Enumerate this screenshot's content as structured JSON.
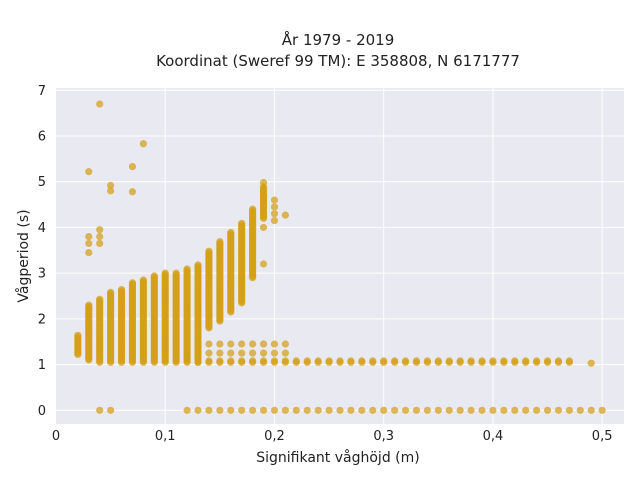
{
  "chart_data": {
    "type": "scatter",
    "title_line1": "År 1979 - 2019",
    "title_line2": "Koordinat (Sweref 99 TM): E 358808, N 6171777",
    "xlabel": "Signifikant våghöjd (m)",
    "ylabel": "Vågperiod (s)",
    "xlim": [
      0,
      0.52
    ],
    "ylim": [
      -0.3,
      7.05
    ],
    "x_ticks": [
      {
        "value": 0,
        "label": "0"
      },
      {
        "value": 0.1,
        "label": "0,1"
      },
      {
        "value": 0.2,
        "label": "0,2"
      },
      {
        "value": 0.3,
        "label": "0,3"
      },
      {
        "value": 0.4,
        "label": "0,4"
      },
      {
        "value": 0.5,
        "label": "0,5"
      }
    ],
    "y_ticks": [
      {
        "value": 0,
        "label": "0"
      },
      {
        "value": 1,
        "label": "1"
      },
      {
        "value": 2,
        "label": "2"
      },
      {
        "value": 3,
        "label": "3"
      },
      {
        "value": 4,
        "label": "4"
      },
      {
        "value": 5,
        "label": "5"
      },
      {
        "value": 6,
        "label": "6"
      },
      {
        "value": 7,
        "label": "7"
      }
    ],
    "grid": true,
    "marker_color": "#d4a017",
    "plot_background": "#e9e9f1",
    "columns": [
      {
        "x": 0.02,
        "y_min": 1.22,
        "y_max": 1.65
      },
      {
        "x": 0.03,
        "y_min": 1.1,
        "y_max": 2.3
      },
      {
        "x": 0.04,
        "y_min": 1.05,
        "y_max": 2.45
      },
      {
        "x": 0.05,
        "y_min": 1.05,
        "y_max": 2.6
      },
      {
        "x": 0.06,
        "y_min": 1.05,
        "y_max": 2.65
      },
      {
        "x": 0.07,
        "y_min": 1.05,
        "y_max": 2.8
      },
      {
        "x": 0.08,
        "y_min": 1.05,
        "y_max": 2.85
      },
      {
        "x": 0.09,
        "y_min": 1.05,
        "y_max": 2.95
      },
      {
        "x": 0.1,
        "y_min": 1.05,
        "y_max": 3.0
      },
      {
        "x": 0.11,
        "y_min": 1.05,
        "y_max": 3.0
      },
      {
        "x": 0.12,
        "y_min": 1.05,
        "y_max": 3.1
      },
      {
        "x": 0.13,
        "y_min": 1.05,
        "y_max": 3.2
      },
      {
        "x": 0.14,
        "y_min": 1.8,
        "y_max": 3.5
      },
      {
        "x": 0.15,
        "y_min": 1.95,
        "y_max": 3.7
      },
      {
        "x": 0.16,
        "y_min": 2.15,
        "y_max": 3.9
      },
      {
        "x": 0.17,
        "y_min": 2.35,
        "y_max": 4.1
      },
      {
        "x": 0.18,
        "y_min": 2.9,
        "y_max": 4.4
      },
      {
        "x": 0.19,
        "y_min": 4.2,
        "y_max": 4.9
      }
    ],
    "points": [
      {
        "x": 0.03,
        "y": 5.22
      },
      {
        "x": 0.04,
        "y": 6.7
      },
      {
        "x": 0.03,
        "y": 3.8
      },
      {
        "x": 0.03,
        "y": 3.65
      },
      {
        "x": 0.03,
        "y": 3.45
      },
      {
        "x": 0.04,
        "y": 3.95
      },
      {
        "x": 0.04,
        "y": 3.8
      },
      {
        "x": 0.04,
        "y": 3.65
      },
      {
        "x": 0.05,
        "y": 4.92
      },
      {
        "x": 0.05,
        "y": 4.8
      },
      {
        "x": 0.07,
        "y": 5.33
      },
      {
        "x": 0.07,
        "y": 4.78
      },
      {
        "x": 0.08,
        "y": 5.83
      },
      {
        "x": 0.19,
        "y": 4.98
      },
      {
        "x": 0.2,
        "y": 4.6
      },
      {
        "x": 0.2,
        "y": 4.45
      },
      {
        "x": 0.2,
        "y": 4.3
      },
      {
        "x": 0.2,
        "y": 4.15
      },
      {
        "x": 0.21,
        "y": 4.27
      },
      {
        "x": 0.19,
        "y": 4.0
      },
      {
        "x": 0.19,
        "y": 3.2
      },
      {
        "x": 0.04,
        "y": 0.0
      },
      {
        "x": 0.05,
        "y": 0.0
      },
      {
        "x": 0.12,
        "y": 0.0
      },
      {
        "x": 0.49,
        "y": 1.03
      }
    ],
    "row_1p45": {
      "y": 1.45,
      "x_start": 0.14,
      "x_end": 0.21
    },
    "row_1p25": {
      "y": 1.25,
      "x_start": 0.14,
      "x_end": 0.21
    },
    "row_1p08": {
      "y": 1.08,
      "x_start": 0.14,
      "x_end": 0.47
    },
    "row_1p05": {
      "y": 1.05,
      "x_start": 0.13,
      "x_end": 0.47
    },
    "row_0": {
      "y": 0.0,
      "x_start": 0.13,
      "x_end": 0.5
    }
  }
}
